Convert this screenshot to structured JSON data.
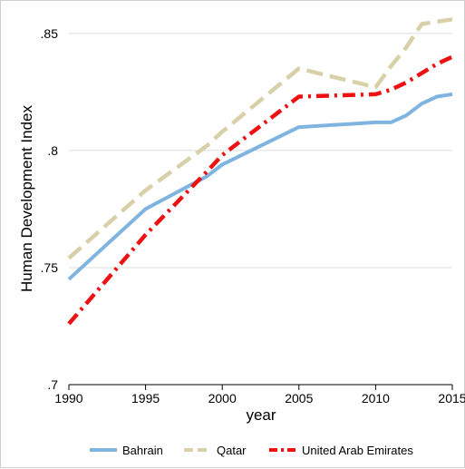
{
  "chart_data": {
    "type": "line",
    "title": "",
    "xlabel": "year",
    "ylabel": "Human Development Index",
    "xlim": [
      1990,
      2015
    ],
    "ylim": [
      0.7,
      0.86
    ],
    "x_ticks": [
      1990,
      1995,
      2000,
      2005,
      2010,
      2015
    ],
    "x_tick_labels": [
      "1990",
      "1995",
      "2000",
      "2005",
      "2010",
      "2015"
    ],
    "y_ticks": [
      0.7,
      0.75,
      0.8,
      0.85
    ],
    "y_tick_labels": [
      ".7",
      ".75",
      ".8",
      ".85"
    ],
    "grid": "horizontal",
    "legend_position": "bottom",
    "x": [
      1990,
      1995,
      1999,
      2000,
      2005,
      2010,
      2011,
      2012,
      2013,
      2014,
      2015
    ],
    "series": [
      {
        "name": "Bahrain",
        "color": "#7fb4e0",
        "style": "solid",
        "values": [
          0.745,
          0.775,
          0.789,
          0.794,
          0.81,
          0.812,
          0.812,
          0.815,
          0.82,
          0.823,
          0.824
        ]
      },
      {
        "name": "Qatar",
        "color": "#d8d0a8",
        "style": "dashed",
        "values": [
          0.754,
          0.783,
          0.802,
          0.808,
          0.835,
          0.827,
          0.836,
          0.844,
          0.854,
          0.855,
          0.856
        ]
      },
      {
        "name": "United Arab Emirates",
        "color": "#ee1111",
        "style": "dashdot",
        "values": [
          0.726,
          0.764,
          0.791,
          0.798,
          0.823,
          0.824,
          0.826,
          0.829,
          0.833,
          0.837,
          0.84
        ]
      }
    ]
  }
}
